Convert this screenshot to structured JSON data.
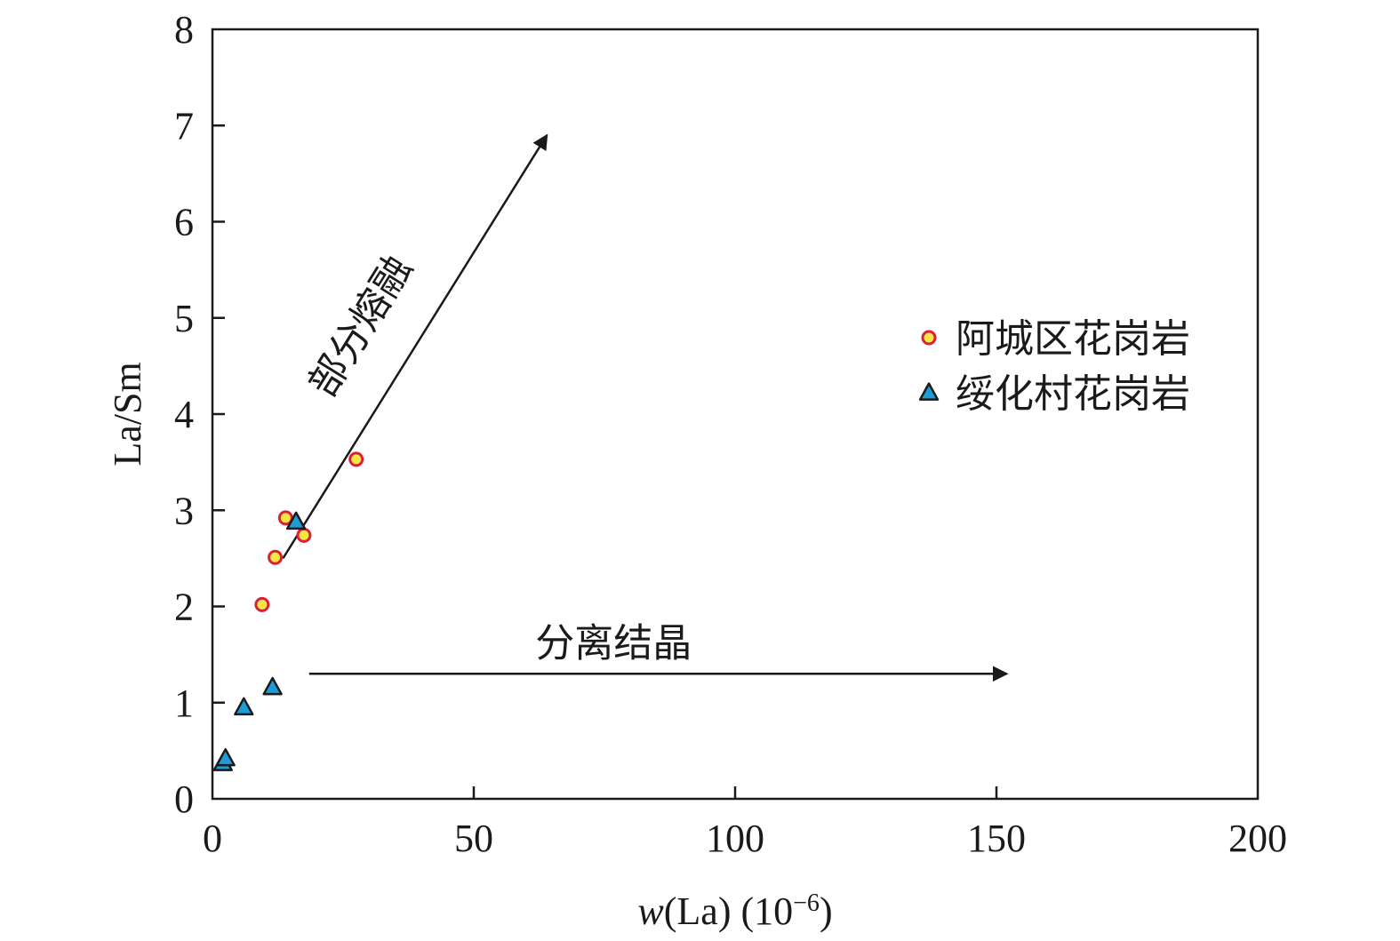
{
  "chart_data": {
    "type": "scatter",
    "xlabel_prefix": "w",
    "xlabel_rest": "(La) (10",
    "xlabel_exp": "−6",
    "xlabel_close": ")",
    "ylabel": "La/Sm",
    "xlim": [
      0,
      200
    ],
    "ylim": [
      0,
      8
    ],
    "xticks": [
      "0",
      "50",
      "100",
      "150",
      "200"
    ],
    "yticks": [
      "0",
      "1",
      "2",
      "3",
      "4",
      "5",
      "6",
      "7",
      "8"
    ],
    "grid": false,
    "legend_position": "right",
    "series": [
      {
        "name": "阿城区花岗岩",
        "marker": "circle",
        "fill": "#f5e642",
        "stroke": "#d8203a",
        "points": [
          {
            "x": 9.5,
            "y": 2.02
          },
          {
            "x": 12.0,
            "y": 2.51
          },
          {
            "x": 14.0,
            "y": 2.92
          },
          {
            "x": 17.5,
            "y": 2.74
          },
          {
            "x": 27.5,
            "y": 3.53
          }
        ]
      },
      {
        "name": "绥化村花岗岩",
        "marker": "triangle",
        "fill": "#1f9bd6",
        "stroke": "#1a1a1a",
        "points": [
          {
            "x": 2.0,
            "y": 0.37
          },
          {
            "x": 2.5,
            "y": 0.42
          },
          {
            "x": 6.0,
            "y": 0.95
          },
          {
            "x": 11.5,
            "y": 1.16
          },
          {
            "x": 16.0,
            "y": 2.88
          }
        ]
      }
    ],
    "annotations": [
      {
        "text": "部分熔融",
        "from": [
          13.5,
          2.5
        ],
        "to": [
          64,
          6.9
        ]
      },
      {
        "text": "分离结晶",
        "from": [
          18.5,
          1.3
        ],
        "to": [
          152,
          1.3
        ]
      }
    ]
  }
}
